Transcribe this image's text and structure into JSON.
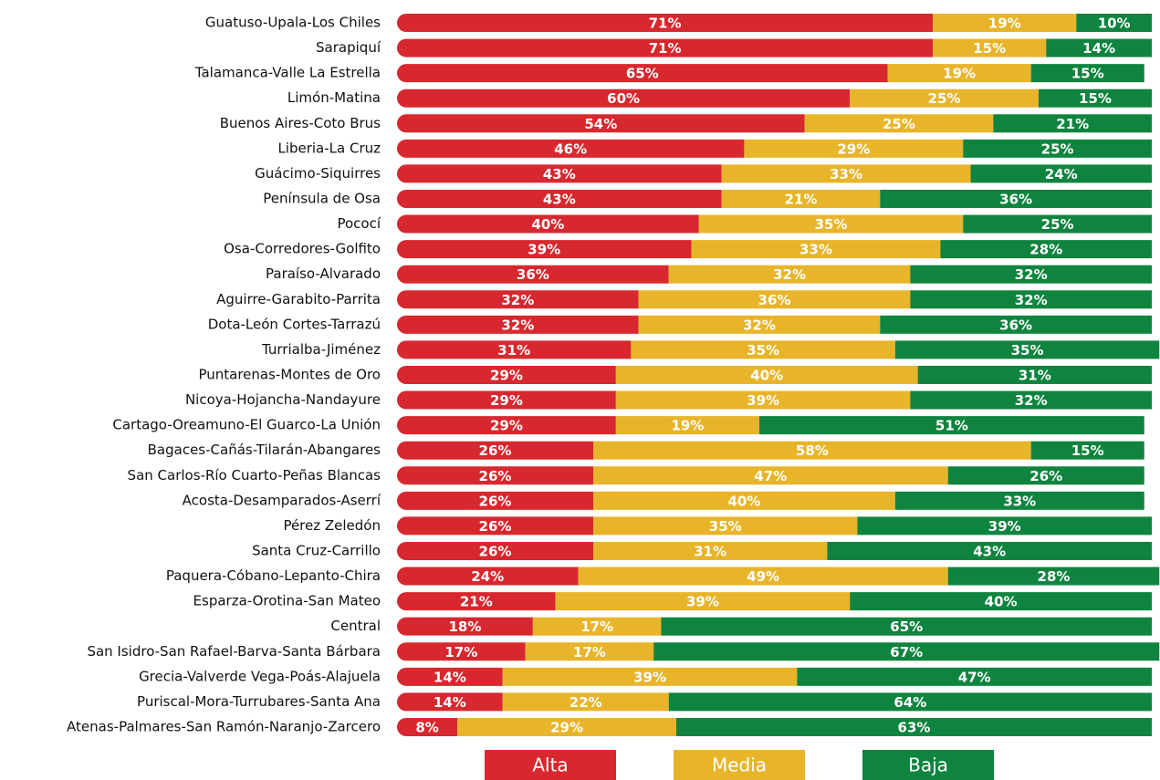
{
  "chart_data": {
    "type": "stacked-bar-horizontal",
    "categories": [
      "Guatuso-Upala-Los Chiles",
      "Sarapiquí",
      "Talamanca-Valle La Estrella",
      "Limón-Matina",
      "Buenos Aires-Coto Brus",
      "Liberia-La Cruz",
      "Guácimo-Siquirres",
      "Península de Osa",
      "Pococí",
      "Osa-Corredores-Golfito",
      "Paraíso-Alvarado",
      "Aguirre-Garabito-Parrita",
      "Dota-León Cortes-Tarrazú",
      "Turrialba-Jiménez",
      "Puntarenas-Montes de Oro",
      "Nicoya-Hojancha-Nandayure",
      "Cartago-Oreamuno-El Guarco-La Unión",
      "Bagaces-Cañás-Tilarán-Abangares",
      "San Carlos-Río Cuarto-Peñas Blancas",
      "Acosta-Desamparados-Aserrí",
      "Pérez Zeledón",
      "Santa Cruz-Carrillo",
      "Paquera-Cóbano-Lepanto-Chira",
      "Esparza-Orotina-San Mateo",
      "Central",
      "San Isidro-San Rafael-Barva-Santa Bárbara",
      "Grecia-Valverde Vega-Poás-Alajuela",
      "Puriscal-Mora-Turrubares-Santa Ana",
      "Atenas-Palmares-San Ramón-Naranjo-Zarcero"
    ],
    "series": [
      {
        "name": "Alta",
        "color": "#d7282f",
        "values": [
          71,
          71,
          65,
          60,
          54,
          46,
          43,
          43,
          40,
          39,
          36,
          32,
          32,
          31,
          29,
          29,
          29,
          26,
          26,
          26,
          26,
          26,
          24,
          21,
          18,
          17,
          14,
          14,
          8
        ],
        "value_labels": [
          "71%",
          "71%",
          "65%",
          "60%",
          "54%",
          "46%",
          "43%",
          "43%",
          "40%",
          "39%",
          "36%",
          "32%",
          "32%",
          "31%",
          "29%",
          "29%",
          "29%",
          "26%",
          "26%",
          "26%",
          "26%",
          "26%",
          "24%",
          "21%",
          "18%",
          "17%",
          "14%",
          "14%",
          "8%"
        ]
      },
      {
        "name": "Media",
        "color": "#e8b42a",
        "values": [
          19,
          15,
          19,
          25,
          25,
          29,
          33,
          21,
          35,
          33,
          32,
          36,
          32,
          35,
          40,
          39,
          19,
          58,
          47,
          40,
          35,
          31,
          49,
          39,
          17,
          17,
          39,
          22,
          29
        ],
        "value_labels": [
          "19%",
          "15%",
          "19%",
          "25%",
          "25%",
          "29%",
          "33%",
          "21%",
          "35%",
          "33%",
          "32%",
          "36%",
          "32%",
          "35%",
          "40%",
          "39%",
          "19%",
          "58%",
          "47%",
          "40%",
          "35%",
          "31%",
          "49%",
          "39%",
          "17%",
          "17%",
          "39%",
          "22%",
          "29%"
        ]
      },
      {
        "name": "Baja",
        "color": "#0f843f",
        "values": [
          10,
          14,
          15,
          15,
          21,
          25,
          24,
          36,
          25,
          28,
          32,
          32,
          36,
          35,
          31,
          32,
          51,
          15,
          26,
          33,
          39,
          43,
          28,
          40,
          65,
          67,
          47,
          64,
          63
        ],
        "value_labels": [
          "10%",
          "14%",
          "15%",
          "15%",
          "21%",
          "25%",
          "24%",
          "36%",
          "25%",
          "28%",
          "32%",
          "32%",
          "36%",
          "35%",
          "31%",
          "32%",
          "51%",
          "15%",
          "26%",
          "33%",
          "39%",
          "43%",
          "28%",
          "40%",
          "65%",
          "67%",
          "47%",
          "64%",
          "63%"
        ]
      }
    ],
    "xlim": [
      0,
      100
    ]
  }
}
